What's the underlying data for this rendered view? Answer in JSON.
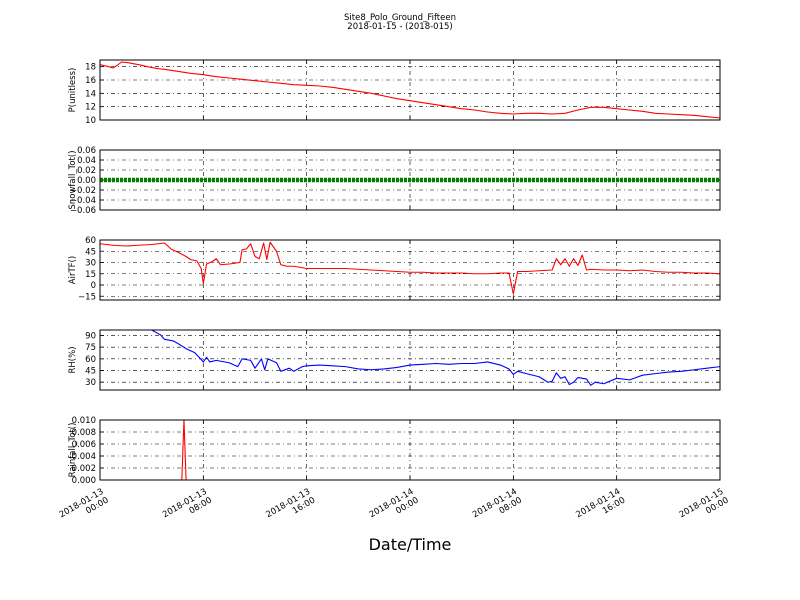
{
  "title": {
    "line1": "Site8_Polo_Ground_Fifteen",
    "line2": "2018-01-15 - (2018-015)"
  },
  "xlabel": "Date/Time",
  "chart_data": {
    "type": "line",
    "shared_x": {
      "range": [
        "2018-01-13 00:00",
        "2018-01-15 00:00"
      ],
      "ticks": [
        {
          "line1": "2018-01-13",
          "line2": "00:00",
          "value": "2018-01-13 00:00"
        },
        {
          "line1": "2018-01-13",
          "line2": "08:00",
          "value": "2018-01-13 08:00"
        },
        {
          "line1": "2018-01-13",
          "line2": "16:00",
          "value": "2018-01-13 16:00"
        },
        {
          "line1": "2018-01-14",
          "line2": "00:00",
          "value": "2018-01-14 00:00"
        },
        {
          "line1": "2018-01-14",
          "line2": "08:00",
          "value": "2018-01-14 08:00"
        },
        {
          "line1": "2018-01-14",
          "line2": "16:00",
          "value": "2018-01-14 16:00"
        },
        {
          "line1": "2018-01-15",
          "line2": "00:00",
          "value": "2018-01-15 00:00"
        }
      ]
    },
    "grid": true,
    "panels": [
      {
        "ylabel": "P(unitless)",
        "ylim": [
          10,
          19
        ],
        "yticks": [
          "10",
          "12",
          "14",
          "16",
          "18"
        ],
        "ytick_values": [
          10,
          12,
          14,
          16,
          18
        ],
        "color": "#ff0000",
        "marker": "line",
        "points": [
          [
            "2018-01-13 00:00",
            18.3
          ],
          [
            "2018-01-13 00:40",
            18.0
          ],
          [
            "2018-01-13 01:00",
            17.8
          ],
          [
            "2018-01-13 01:20",
            18.2
          ],
          [
            "2018-01-13 01:40",
            18.7
          ],
          [
            "2018-01-13 02:10",
            18.6
          ],
          [
            "2018-01-13 03:00",
            18.3
          ],
          [
            "2018-01-13 03:40",
            18.0
          ],
          [
            "2018-01-13 04:30",
            17.7
          ],
          [
            "2018-01-13 05:00",
            17.6
          ],
          [
            "2018-01-13 06:00",
            17.3
          ],
          [
            "2018-01-13 07:00",
            17.0
          ],
          [
            "2018-01-13 08:00",
            16.8
          ],
          [
            "2018-01-13 09:00",
            16.5
          ],
          [
            "2018-01-13 10:00",
            16.3
          ],
          [
            "2018-01-13 11:00",
            16.1
          ],
          [
            "2018-01-13 12:00",
            15.9
          ],
          [
            "2018-01-13 13:00",
            15.7
          ],
          [
            "2018-01-13 14:00",
            15.5
          ],
          [
            "2018-01-13 15:00",
            15.3
          ],
          [
            "2018-01-13 16:00",
            15.2
          ],
          [
            "2018-01-13 17:00",
            15.1
          ],
          [
            "2018-01-13 18:00",
            14.9
          ],
          [
            "2018-01-13 19:00",
            14.6
          ],
          [
            "2018-01-13 20:00",
            14.3
          ],
          [
            "2018-01-13 21:00",
            14.0
          ],
          [
            "2018-01-13 22:00",
            13.6
          ],
          [
            "2018-01-13 23:00",
            13.2
          ],
          [
            "2018-01-14 00:00",
            12.9
          ],
          [
            "2018-01-14 01:00",
            12.6
          ],
          [
            "2018-01-14 02:00",
            12.3
          ],
          [
            "2018-01-14 03:00",
            12.0
          ],
          [
            "2018-01-14 04:00",
            11.7
          ],
          [
            "2018-01-14 05:00",
            11.5
          ],
          [
            "2018-01-14 06:00",
            11.2
          ],
          [
            "2018-01-14 07:00",
            11.0
          ],
          [
            "2018-01-14 08:00",
            10.9
          ],
          [
            "2018-01-14 09:00",
            11.0
          ],
          [
            "2018-01-14 10:00",
            11.0
          ],
          [
            "2018-01-14 11:00",
            10.9
          ],
          [
            "2018-01-14 12:00",
            11.0
          ],
          [
            "2018-01-14 13:00",
            11.5
          ],
          [
            "2018-01-14 14:00",
            11.9
          ],
          [
            "2018-01-14 15:00",
            11.9
          ],
          [
            "2018-01-14 16:00",
            11.7
          ],
          [
            "2018-01-14 17:00",
            11.5
          ],
          [
            "2018-01-14 18:00",
            11.3
          ],
          [
            "2018-01-14 19:00",
            11.0
          ],
          [
            "2018-01-14 20:00",
            10.9
          ],
          [
            "2018-01-14 21:00",
            10.8
          ],
          [
            "2018-01-14 22:00",
            10.7
          ],
          [
            "2018-01-14 23:00",
            10.5
          ],
          [
            "2018-01-15 00:00",
            10.3
          ]
        ]
      },
      {
        "ylabel": "Snowfall_Tot()",
        "ylim": [
          -0.06,
          0.06
        ],
        "yticks": [
          "−0.06",
          "−0.04",
          "−0.02",
          "0.00",
          "0.02",
          "0.04",
          "0.06"
        ],
        "ytick_values": [
          -0.06,
          -0.04,
          -0.02,
          0,
          0.02,
          0.04,
          0.06
        ],
        "color": "#008000",
        "marker": "thick-line",
        "points": [
          [
            "2018-01-13 00:00",
            0.0
          ],
          [
            "2018-01-15 00:00",
            0.0
          ]
        ]
      },
      {
        "ylabel": "AirTF()",
        "ylim": [
          -20,
          60
        ],
        "yticks": [
          "−15",
          "0",
          "15",
          "30",
          "45",
          "60"
        ],
        "ytick_values": [
          -15,
          0,
          15,
          30,
          45,
          60
        ],
        "color": "#ff0000",
        "marker": "line",
        "points": [
          [
            "2018-01-13 00:00",
            55
          ],
          [
            "2018-01-13 01:00",
            53
          ],
          [
            "2018-01-13 02:00",
            52
          ],
          [
            "2018-01-13 03:00",
            53
          ],
          [
            "2018-01-13 04:00",
            54
          ],
          [
            "2018-01-13 05:00",
            56
          ],
          [
            "2018-01-13 05:30",
            48
          ],
          [
            "2018-01-13 06:00",
            44
          ],
          [
            "2018-01-13 06:40",
            38
          ],
          [
            "2018-01-13 07:00",
            34
          ],
          [
            "2018-01-13 07:30",
            32
          ],
          [
            "2018-01-13 07:50",
            22
          ],
          [
            "2018-01-13 08:00",
            2
          ],
          [
            "2018-01-13 08:15",
            28
          ],
          [
            "2018-01-13 08:40",
            31
          ],
          [
            "2018-01-13 09:00",
            35
          ],
          [
            "2018-01-13 09:20",
            27
          ],
          [
            "2018-01-13 10:00",
            28
          ],
          [
            "2018-01-13 10:50",
            30
          ],
          [
            "2018-01-13 11:00",
            47
          ],
          [
            "2018-01-13 11:20",
            48
          ],
          [
            "2018-01-13 11:40",
            55
          ],
          [
            "2018-01-13 12:00",
            38
          ],
          [
            "2018-01-13 12:20",
            35
          ],
          [
            "2018-01-13 12:40",
            56
          ],
          [
            "2018-01-13 12:55",
            34
          ],
          [
            "2018-01-13 13:10",
            57
          ],
          [
            "2018-01-13 13:40",
            45
          ],
          [
            "2018-01-13 14:00",
            27
          ],
          [
            "2018-01-13 14:30",
            25
          ],
          [
            "2018-01-13 15:00",
            25
          ],
          [
            "2018-01-13 16:00",
            22
          ],
          [
            "2018-01-13 17:00",
            22
          ],
          [
            "2018-01-13 18:00",
            22
          ],
          [
            "2018-01-13 19:00",
            22
          ],
          [
            "2018-01-13 20:00",
            21
          ],
          [
            "2018-01-13 21:00",
            20
          ],
          [
            "2018-01-13 22:00",
            19
          ],
          [
            "2018-01-13 23:00",
            18
          ],
          [
            "2018-01-14 00:00",
            17
          ],
          [
            "2018-01-14 01:00",
            17
          ],
          [
            "2018-01-14 02:00",
            16
          ],
          [
            "2018-01-14 03:00",
            16
          ],
          [
            "2018-01-14 04:00",
            16
          ],
          [
            "2018-01-14 05:00",
            15
          ],
          [
            "2018-01-14 06:00",
            15
          ],
          [
            "2018-01-14 07:00",
            16
          ],
          [
            "2018-01-14 07:40",
            16
          ],
          [
            "2018-01-14 08:00",
            -12
          ],
          [
            "2018-01-14 08:20",
            18
          ],
          [
            "2018-01-14 09:00",
            18
          ],
          [
            "2018-01-14 10:00",
            19
          ],
          [
            "2018-01-14 11:00",
            20
          ],
          [
            "2018-01-14 11:20",
            35
          ],
          [
            "2018-01-14 11:40",
            27
          ],
          [
            "2018-01-14 12:00",
            35
          ],
          [
            "2018-01-14 12:20",
            25
          ],
          [
            "2018-01-14 12:40",
            35
          ],
          [
            "2018-01-14 13:00",
            26
          ],
          [
            "2018-01-14 13:20",
            40
          ],
          [
            "2018-01-14 13:40",
            20
          ],
          [
            "2018-01-14 14:00",
            21
          ],
          [
            "2018-01-14 15:00",
            20
          ],
          [
            "2018-01-14 16:00",
            20
          ],
          [
            "2018-01-14 17:00",
            19
          ],
          [
            "2018-01-14 18:00",
            20
          ],
          [
            "2018-01-14 19:00",
            18
          ],
          [
            "2018-01-14 20:00",
            17
          ],
          [
            "2018-01-14 21:00",
            17
          ],
          [
            "2018-01-14 22:00",
            16
          ],
          [
            "2018-01-14 23:00",
            16
          ],
          [
            "2018-01-15 00:00",
            15
          ]
        ]
      },
      {
        "ylabel": "RH(%)",
        "ylim": [
          20,
          97
        ],
        "yticks": [
          "30",
          "45",
          "60",
          "75",
          "90"
        ],
        "ytick_values": [
          30,
          45,
          60,
          75,
          90
        ],
        "color": "#0000ff",
        "marker": "line",
        "points": [
          [
            "2018-01-13 04:00",
            97
          ],
          [
            "2018-01-13 04:40",
            91
          ],
          [
            "2018-01-13 05:00",
            85
          ],
          [
            "2018-01-13 05:40",
            83
          ],
          [
            "2018-01-13 06:00",
            80
          ],
          [
            "2018-01-13 06:40",
            73
          ],
          [
            "2018-01-13 07:20",
            68
          ],
          [
            "2018-01-13 07:40",
            62
          ],
          [
            "2018-01-13 08:00",
            56
          ],
          [
            "2018-01-13 08:15",
            62
          ],
          [
            "2018-01-13 08:30",
            56
          ],
          [
            "2018-01-13 09:00",
            58
          ],
          [
            "2018-01-13 10:00",
            55
          ],
          [
            "2018-01-13 10:40",
            50
          ],
          [
            "2018-01-13 11:00",
            60
          ],
          [
            "2018-01-13 11:40",
            58
          ],
          [
            "2018-01-13 12:00",
            48
          ],
          [
            "2018-01-13 12:30",
            60
          ],
          [
            "2018-01-13 12:45",
            46
          ],
          [
            "2018-01-13 13:00",
            60
          ],
          [
            "2018-01-13 13:40",
            55
          ],
          [
            "2018-01-13 14:00",
            44
          ],
          [
            "2018-01-13 14:40",
            48
          ],
          [
            "2018-01-13 15:00",
            44
          ],
          [
            "2018-01-13 15:40",
            50
          ],
          [
            "2018-01-13 16:00",
            51
          ],
          [
            "2018-01-13 17:00",
            52
          ],
          [
            "2018-01-13 18:00",
            51
          ],
          [
            "2018-01-13 19:00",
            50
          ],
          [
            "2018-01-13 20:00",
            47
          ],
          [
            "2018-01-13 21:00",
            46
          ],
          [
            "2018-01-13 22:00",
            47
          ],
          [
            "2018-01-13 23:00",
            49
          ],
          [
            "2018-01-14 00:00",
            52
          ],
          [
            "2018-01-14 01:00",
            53
          ],
          [
            "2018-01-14 02:00",
            54
          ],
          [
            "2018-01-14 03:00",
            53
          ],
          [
            "2018-01-14 04:00",
            54
          ],
          [
            "2018-01-14 05:00",
            54
          ],
          [
            "2018-01-14 06:00",
            56
          ],
          [
            "2018-01-14 07:00",
            52
          ],
          [
            "2018-01-14 07:40",
            47
          ],
          [
            "2018-01-14 08:00",
            40
          ],
          [
            "2018-01-14 08:20",
            44
          ],
          [
            "2018-01-14 09:00",
            41
          ],
          [
            "2018-01-14 10:00",
            37
          ],
          [
            "2018-01-14 10:40",
            30
          ],
          [
            "2018-01-14 11:00",
            31
          ],
          [
            "2018-01-14 11:20",
            42
          ],
          [
            "2018-01-14 11:40",
            35
          ],
          [
            "2018-01-14 12:00",
            37
          ],
          [
            "2018-01-14 12:20",
            27
          ],
          [
            "2018-01-14 12:40",
            30
          ],
          [
            "2018-01-14 13:00",
            36
          ],
          [
            "2018-01-14 13:40",
            34
          ],
          [
            "2018-01-14 14:00",
            26
          ],
          [
            "2018-01-14 14:20",
            30
          ],
          [
            "2018-01-14 15:00",
            28
          ],
          [
            "2018-01-14 16:00",
            35
          ],
          [
            "2018-01-14 17:00",
            33
          ],
          [
            "2018-01-14 18:00",
            39
          ],
          [
            "2018-01-14 19:00",
            41
          ],
          [
            "2018-01-14 20:00",
            43
          ],
          [
            "2018-01-14 21:00",
            44
          ],
          [
            "2018-01-14 22:00",
            46
          ],
          [
            "2018-01-14 23:00",
            48
          ],
          [
            "2018-01-15 00:00",
            50
          ]
        ]
      },
      {
        "ylabel": "Rainfall_Tot()",
        "ylim": [
          0,
          0.01
        ],
        "yticks": [
          "0.000",
          "0.002",
          "0.004",
          "0.006",
          "0.008",
          "0.010"
        ],
        "ytick_values": [
          0,
          0.002,
          0.004,
          0.006,
          0.008,
          0.01
        ],
        "color": "#ff0000",
        "marker": "line",
        "points": [
          [
            "2018-01-13 00:00",
            0.0
          ],
          [
            "2018-01-13 06:20",
            0.0
          ],
          [
            "2018-01-13 06:30",
            0.01
          ],
          [
            "2018-01-13 06:40",
            0.0
          ],
          [
            "2018-01-15 00:00",
            0.0
          ]
        ]
      }
    ]
  }
}
